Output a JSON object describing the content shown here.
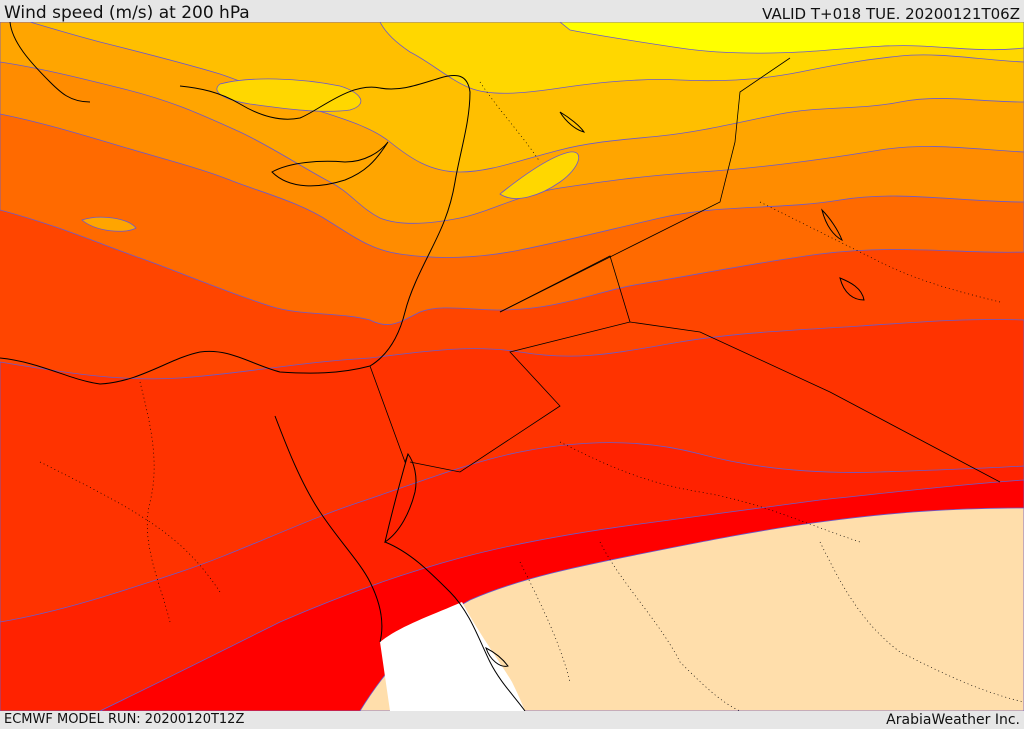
{
  "header": {
    "title": "Wind speed (m/s) at 200 hPa",
    "valid": "VALID T+018 TUE. 20200121T06Z"
  },
  "footer": {
    "model_run": "ECMWF MODEL RUN: 20200120T12Z",
    "credit": "ArabiaWeather Inc."
  },
  "map": {
    "colors": {
      "band_yellow": "#ffff00",
      "band_gold": "#ffd700",
      "band_amber": "#ffbf00",
      "band_orange_light": "#ffa500",
      "band_orange": "#ff8c00",
      "band_orange_dark": "#ff6a00",
      "band_red_orange": "#ff4500",
      "band_red_light": "#ff3300",
      "band_red_mid": "#ff2200",
      "band_red": "#ff0000",
      "calm_beige": "#ffdeab",
      "calm_white": "#ffffff",
      "contour_line": "#6a5acd",
      "coastline": "#000000"
    }
  }
}
